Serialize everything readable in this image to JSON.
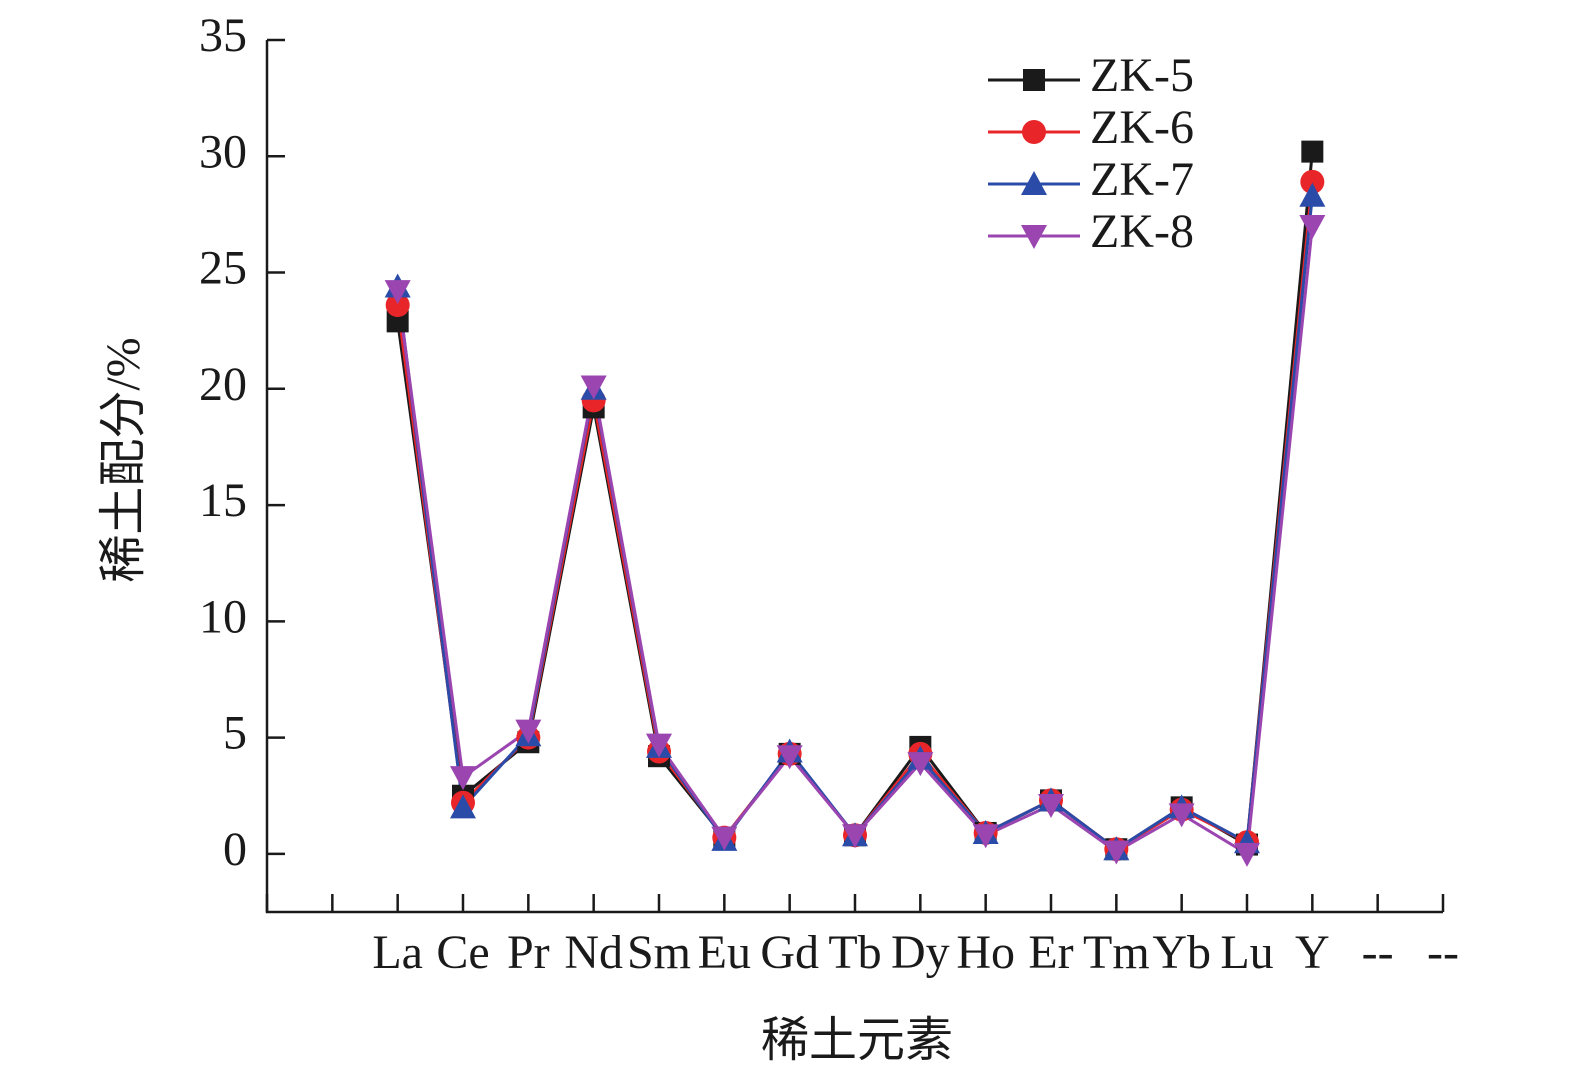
{
  "chart_data": {
    "type": "line",
    "x_label": "稀土元素",
    "y_label": "稀土配分/%",
    "categories": [
      null,
      null,
      "La",
      "Ce",
      "Pr",
      "Nd",
      "Sm",
      "Eu",
      "Gd",
      "Tb",
      "Dy",
      "Ho",
      "Er",
      "Tm",
      "Yb",
      "Lu",
      "Y",
      "--",
      "--"
    ],
    "series": [
      {
        "name": "ZK-5",
        "color": "#1a1a1a",
        "marker": "square",
        "values": [
          null,
          null,
          22.9,
          2.5,
          4.8,
          19.2,
          4.2,
          0.7,
          4.3,
          0.8,
          4.6,
          0.9,
          2.3,
          0.2,
          2.0,
          0.4,
          30.2,
          null,
          null
        ]
      },
      {
        "name": "ZK-6",
        "color": "#e8262a",
        "marker": "circle",
        "values": [
          null,
          null,
          23.6,
          2.2,
          5.0,
          19.5,
          4.4,
          0.7,
          4.3,
          0.8,
          4.3,
          0.9,
          2.3,
          0.2,
          1.9,
          0.5,
          28.9,
          null,
          null
        ]
      },
      {
        "name": "ZK-7",
        "color": "#2b4ba8",
        "marker": "triangle-up",
        "values": [
          null,
          null,
          24.4,
          2.0,
          5.1,
          20.0,
          4.6,
          0.6,
          4.4,
          0.8,
          4.1,
          0.9,
          2.3,
          0.2,
          2.0,
          0.5,
          28.3,
          null,
          null
        ]
      },
      {
        "name": "ZK-8",
        "color": "#9b45b0",
        "marker": "triangle-down",
        "values": [
          null,
          null,
          24.2,
          3.3,
          5.3,
          20.1,
          4.7,
          0.7,
          4.2,
          0.8,
          3.9,
          0.8,
          2.1,
          0.1,
          1.7,
          0.0,
          27.0,
          null,
          null
        ]
      }
    ],
    "ylim": [
      -2.5,
      35
    ],
    "yticks": [
      0,
      5,
      10,
      15,
      20,
      25,
      30,
      35
    ],
    "legend": "upper right"
  }
}
